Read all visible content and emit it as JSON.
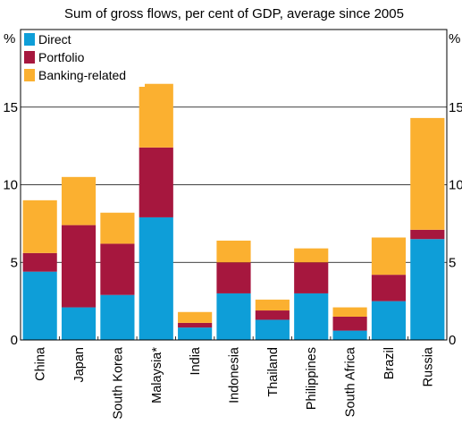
{
  "chart_data": {
    "type": "bar",
    "stacked": true,
    "subtitle": "Sum of gross flows, per cent of GDP, average since 2005",
    "y_unit_left": "%",
    "y_unit_right": "%",
    "ylim": [
      0,
      20
    ],
    "yticks": [
      "0",
      "5",
      "10",
      "15"
    ],
    "grid": true,
    "legend_position": "top-left",
    "categories": [
      "China",
      "Japan",
      "South Korea",
      "Malaysia*",
      "India",
      "Indonesia",
      "Thailand",
      "Philippines",
      "South Africa",
      "Brazil",
      "Russia"
    ],
    "series": [
      {
        "name": "Direct",
        "color": "#0e9ed8",
        "values": [
          4.4,
          2.1,
          2.9,
          7.9,
          0.8,
          3.0,
          1.3,
          3.0,
          0.6,
          2.5,
          6.5
        ]
      },
      {
        "name": "Portfolio",
        "color": "#a6173e",
        "values": [
          1.2,
          5.3,
          3.3,
          4.5,
          0.3,
          2.0,
          0.6,
          2.0,
          0.9,
          1.7,
          0.6
        ]
      },
      {
        "name": "Banking-related",
        "color": "#fbb030",
        "values": [
          3.4,
          3.1,
          2.0,
          4.1,
          0.7,
          1.4,
          0.7,
          0.9,
          0.6,
          2.4,
          7.2
        ]
      }
    ]
  }
}
